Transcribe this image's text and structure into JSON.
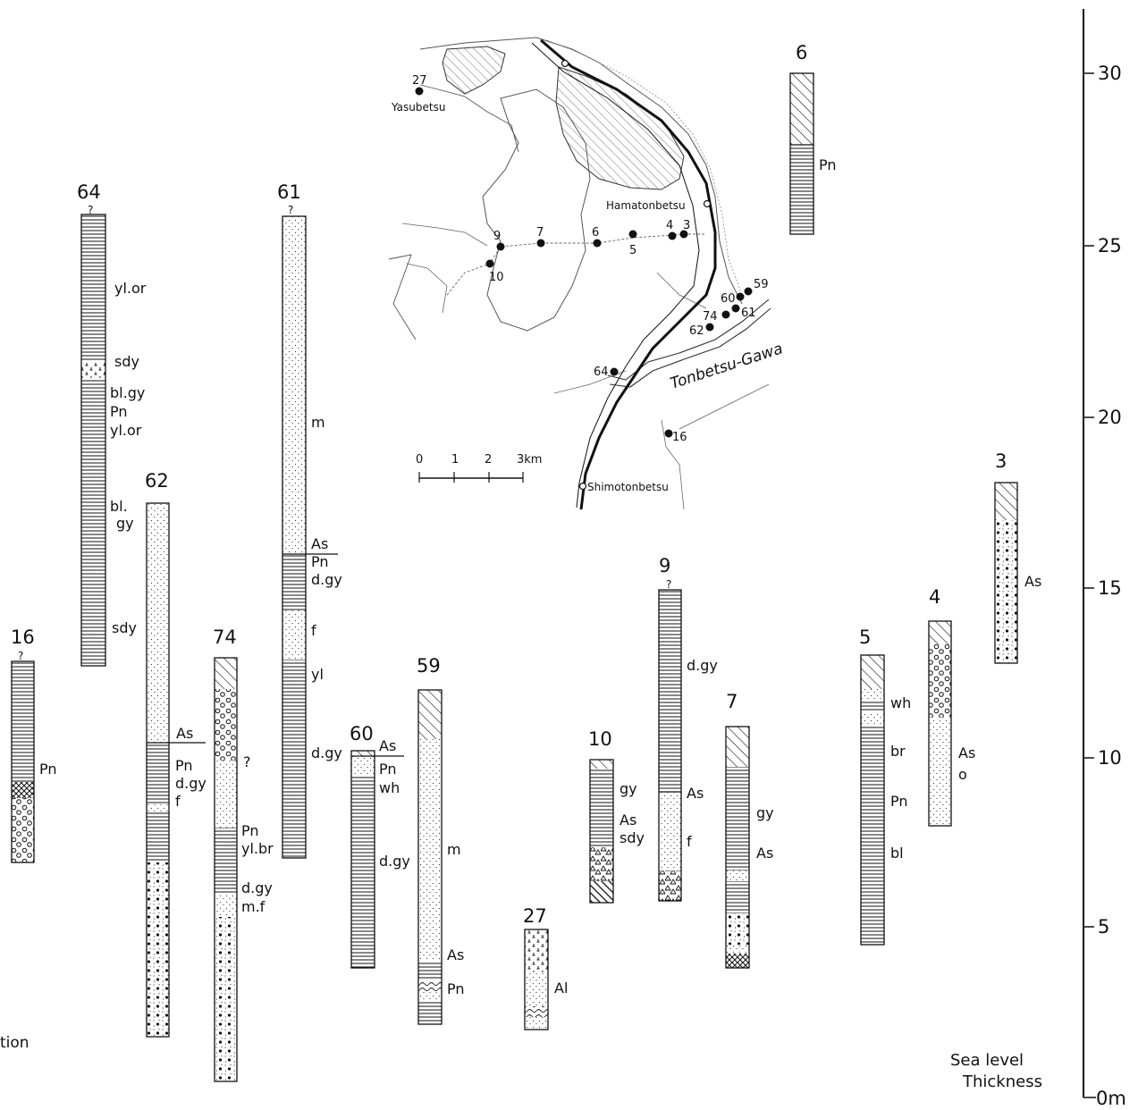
{
  "scale": {
    "ticks": [
      {
        "value": 30,
        "label": "30"
      },
      {
        "value": 25,
        "label": "25"
      },
      {
        "value": 20,
        "label": "20"
      },
      {
        "value": 15,
        "label": "15"
      },
      {
        "value": 10,
        "label": "10"
      },
      {
        "value": 5,
        "label": "5"
      },
      {
        "value": 0,
        "label": "0m"
      }
    ],
    "caption_line1": "Sea level",
    "caption_line2": "Thickness"
  },
  "partial_caption": "tion",
  "map": {
    "scale_bar": {
      "labels": [
        "0",
        "1",
        "2",
        "3km"
      ]
    },
    "river_name": "Tonbetsu-Gawa",
    "places": [
      "Yasubetsu",
      "Hamatonbetsu",
      "Shimotonbetsu"
    ],
    "sites": [
      "27",
      "9",
      "7",
      "10",
      "6",
      "5",
      "4",
      "3",
      "59",
      "60",
      "61",
      "74",
      "62",
      "64",
      "16"
    ]
  },
  "columns": {
    "c64": {
      "num": "64",
      "q": "?",
      "l1": "yl.or",
      "l2": "sdy",
      "l3": "bl.gy",
      "l4": "Pn",
      "l5": "yl.or",
      "l6": "bl.",
      "l7": "gy",
      "l8": "sdy"
    },
    "c61": {
      "num": "61",
      "q": "?",
      "l1": "m",
      "l2": "As",
      "l3": "Pn",
      "l4": "d.gy",
      "l5": "f",
      "l6": "yl",
      "l7": "d.gy"
    },
    "c6": {
      "num": "6",
      "l1": "Pn"
    },
    "c62": {
      "num": "62",
      "l1": "As",
      "l2": "Pn",
      "l3": "d.gy",
      "l4": "f"
    },
    "c16": {
      "num": "16",
      "q": "?",
      "l1": "Pn"
    },
    "c74": {
      "num": "74",
      "l1": "?",
      "l2": "Pn",
      "l3": "yl.br",
      "l4": "d.gy",
      "l5": "m.f"
    },
    "c60": {
      "num": "60",
      "l1": "As",
      "l2": "Pn",
      "l3": "wh",
      "l4": "d.gy"
    },
    "c59": {
      "num": "59",
      "l1": "m",
      "l2": "As",
      "l3": "Pn"
    },
    "c27": {
      "num": "27",
      "l1": "Al"
    },
    "c10": {
      "num": "10",
      "l1": "gy",
      "l2": "As",
      "l3": "sdy"
    },
    "c9": {
      "num": "9",
      "q": "?",
      "l1": "d.gy",
      "l2": "As",
      "l3": "f"
    },
    "c7": {
      "num": "7",
      "l1": "gy",
      "l2": "As"
    },
    "c5": {
      "num": "5",
      "l1": "wh",
      "l2": "br",
      "l3": "Pn",
      "l4": "bl"
    },
    "c4": {
      "num": "4",
      "l1": "As",
      "l2": "o"
    },
    "c3": {
      "num": "3",
      "l1": "As"
    }
  }
}
